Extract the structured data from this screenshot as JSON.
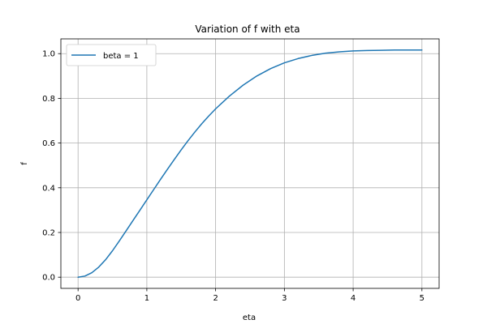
{
  "chart_data": {
    "type": "line",
    "title": "Variation of f with eta",
    "xlabel": "eta",
    "ylabel": "f",
    "xlim": [
      -0.25,
      5.25
    ],
    "ylim": [
      -0.05,
      1.066
    ],
    "xticks": [
      0,
      1,
      2,
      3,
      4,
      5
    ],
    "xtick_labels": [
      "0",
      "1",
      "2",
      "3",
      "4",
      "5"
    ],
    "yticks": [
      0.0,
      0.2,
      0.4,
      0.6,
      0.8,
      1.0
    ],
    "ytick_labels": [
      "0.0",
      "0.2",
      "0.4",
      "0.6",
      "0.8",
      "1.0"
    ],
    "grid": true,
    "legend_position": "upper-left",
    "series": [
      {
        "name": "beta = 1",
        "color": "#1f77b4",
        "x": [
          0,
          0.1,
          0.2,
          0.3,
          0.4,
          0.5,
          0.6,
          0.7,
          0.8,
          0.9,
          1.0,
          1.1,
          1.2,
          1.3,
          1.4,
          1.5,
          1.6,
          1.7,
          1.8,
          1.9,
          2.0,
          2.2,
          2.4,
          2.6,
          2.8,
          3.0,
          3.2,
          3.4,
          3.6,
          3.8,
          4.0,
          4.2,
          4.4,
          4.6,
          4.8,
          5.0
        ],
        "y": [
          0.0,
          0.005,
          0.02,
          0.045,
          0.078,
          0.118,
          0.162,
          0.208,
          0.254,
          0.3,
          0.346,
          0.392,
          0.438,
          0.483,
          0.527,
          0.57,
          0.611,
          0.65,
          0.687,
          0.721,
          0.753,
          0.81,
          0.859,
          0.9,
          0.933,
          0.959,
          0.978,
          0.992,
          1.002,
          1.008,
          1.012,
          1.014,
          1.015,
          1.016,
          1.016,
          1.016
        ]
      }
    ]
  }
}
